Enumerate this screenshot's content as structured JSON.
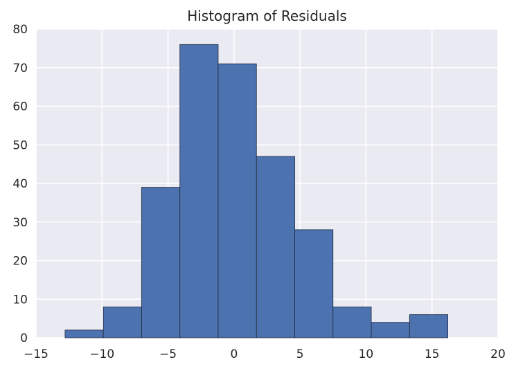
{
  "chart_data": {
    "type": "bar",
    "title": "Histogram of Residuals",
    "xlabel": "",
    "ylabel": "",
    "xlim": [
      -15,
      20
    ],
    "ylim": [
      0,
      80
    ],
    "grid": true,
    "bin_edges": [
      -12.8,
      -9.9,
      -7.0,
      -4.1,
      -1.2,
      1.7,
      4.6,
      7.5,
      10.4,
      13.3,
      16.2
    ],
    "values": [
      2,
      8,
      39,
      76,
      71,
      47,
      28,
      8,
      4,
      6
    ],
    "x_ticks": [
      "−15",
      "−10",
      "−5",
      "0",
      "5",
      "10",
      "15",
      "20"
    ],
    "x_tick_values": [
      -15,
      -10,
      -5,
      0,
      5,
      10,
      15,
      20
    ],
    "y_ticks": [
      "0",
      "10",
      "20",
      "30",
      "40",
      "50",
      "60",
      "70",
      "80"
    ],
    "y_tick_values": [
      0,
      10,
      20,
      30,
      40,
      50,
      60,
      70,
      80
    ],
    "colors": {
      "bar": "#4c72b0",
      "background": "#eaeaf2",
      "grid": "#ffffff"
    }
  }
}
